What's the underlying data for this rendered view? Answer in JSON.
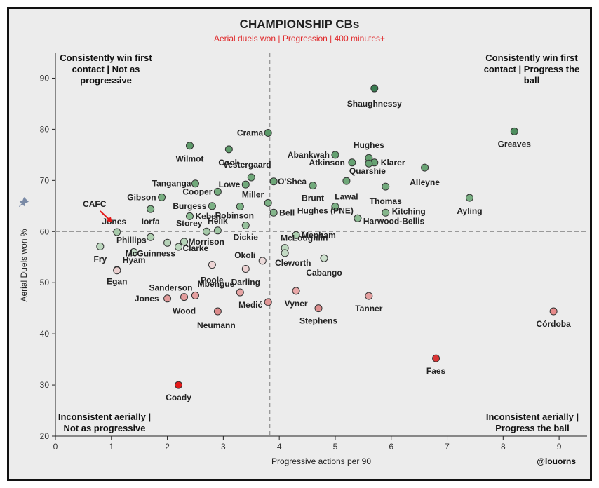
{
  "chart_data": {
    "type": "scatter",
    "title": "CHAMPIONSHIP CBs",
    "subtitle": "Aerial duels won | Progression | 400 minutes+",
    "xlabel": "Progressive actions per 90",
    "ylabel": "Aerial Duels won %",
    "xlim": [
      0,
      9.5
    ],
    "ylim": [
      20,
      95
    ],
    "xticks": [
      0,
      1,
      2,
      3,
      4,
      5,
      6,
      7,
      8,
      9
    ],
    "yticks": [
      20,
      30,
      40,
      50,
      60,
      70,
      80,
      90
    ],
    "x_ref": 3.83,
    "y_ref": 60,
    "credit": "@louorns",
    "highlight": "CAFC",
    "quadrants": {
      "top_left": [
        "Consistently win first",
        "contact | Not as",
        "progressive"
      ],
      "top_right": [
        "Consistently win first",
        "contact | Progress the",
        "ball"
      ],
      "bottom_left": [
        "Inconsistent aerially |",
        "Not as progressive"
      ],
      "bottom_right": [
        "Inconsistent aerially |",
        "Progress the ball"
      ]
    },
    "points": [
      {
        "name": "Shaughnessy",
        "x": 5.7,
        "y": 88,
        "color": "#3a7d52"
      },
      {
        "name": "Greaves",
        "x": 8.2,
        "y": 79.6,
        "color": "#4e8d5e"
      },
      {
        "name": "Crama",
        "x": 3.8,
        "y": 79.3,
        "color": "#5a9868"
      },
      {
        "name": "Wilmot",
        "x": 2.4,
        "y": 76.8,
        "color": "#5e9a6a"
      },
      {
        "name": "Cook",
        "x": 3.1,
        "y": 76.1,
        "color": "#5f9c6b"
      },
      {
        "name": "Abankwah",
        "x": 5.0,
        "y": 75,
        "color": "#64a070"
      },
      {
        "name": "Hughes",
        "x": 5.6,
        "y": 74.4,
        "color": "#64a070"
      },
      {
        "name": "Atkinson",
        "x": 5.3,
        "y": 73.5,
        "color": "#67a273"
      },
      {
        "name": "Klarer",
        "x": 5.7,
        "y": 73.5,
        "color": "#67a273"
      },
      {
        "name": "",
        "x": 5.6,
        "y": 73.3,
        "color": "#67a273"
      },
      {
        "name": "Alleyne",
        "x": 6.6,
        "y": 72.5,
        "color": "#69a374"
      },
      {
        "name": "Vestergaard",
        "x": 3.5,
        "y": 70.6,
        "color": "#6ea778"
      },
      {
        "name": "Quarshie",
        "x": 5.2,
        "y": 69.9,
        "color": "#6fa879"
      },
      {
        "name": "O'Shea",
        "x": 3.9,
        "y": 69.8,
        "color": "#6fa879"
      },
      {
        "name": "Tanganga",
        "x": 2.5,
        "y": 69.4,
        "color": "#71a97b"
      },
      {
        "name": "Lowe",
        "x": 3.4,
        "y": 69.2,
        "color": "#71a97b"
      },
      {
        "name": "Brunt",
        "x": 4.6,
        "y": 69,
        "color": "#72aa7c"
      },
      {
        "name": "Thomas",
        "x": 5.9,
        "y": 68.8,
        "color": "#72aa7c"
      },
      {
        "name": "Cooper",
        "x": 2.9,
        "y": 67.8,
        "color": "#75ac7e"
      },
      {
        "name": "Gibson",
        "x": 1.9,
        "y": 66.7,
        "color": "#78ae81"
      },
      {
        "name": "Ayling",
        "x": 7.4,
        "y": 66.6,
        "color": "#78ae81"
      },
      {
        "name": "Miller",
        "x": 3.8,
        "y": 65.6,
        "color": "#7bb084"
      },
      {
        "name": "Burgess",
        "x": 2.8,
        "y": 65,
        "color": "#7cb185"
      },
      {
        "name": "Lawal",
        "x": 5.0,
        "y": 64.9,
        "color": "#7cb185"
      },
      {
        "name": "Robinson",
        "x": 3.3,
        "y": 64.9,
        "color": "#7cb185"
      },
      {
        "name": "Iorfa",
        "x": 1.7,
        "y": 64.4,
        "color": "#80b388"
      },
      {
        "name": "Bell",
        "x": 3.9,
        "y": 63.7,
        "color": "#85b68c"
      },
      {
        "name": "Kitching",
        "x": 5.9,
        "y": 63.7,
        "color": "#85b68c"
      },
      {
        "name": "Keben",
        "x": 2.4,
        "y": 63,
        "color": "#8aba91"
      },
      {
        "name": "Hughes (PNE)",
        "x": 5.4,
        "y": 62.6,
        "color": "#8dbb93"
      },
      {
        "name": "Harwood-Bellis",
        "x": 5.4,
        "y": 62.6,
        "color": "#8dbb93"
      },
      {
        "name": "Dickie",
        "x": 3.4,
        "y": 61.2,
        "color": "#97c19c"
      },
      {
        "name": "Helik",
        "x": 2.9,
        "y": 60.2,
        "color": "#a0c6a4"
      },
      {
        "name": "Storey",
        "x": 2.7,
        "y": 60,
        "color": "#a5c9a8"
      },
      {
        "name": "Jones",
        "x": 1.1,
        "y": 59.9,
        "color": "#a8cbab"
      },
      {
        "name": "Mepham",
        "x": 4.3,
        "y": 59.3,
        "color": "#acceaf"
      },
      {
        "name": "Phillips",
        "x": 1.7,
        "y": 58.9,
        "color": "#b0d0b2"
      },
      {
        "name": "Morrison",
        "x": 2.3,
        "y": 58,
        "color": "#b6d3b8"
      },
      {
        "name": "McLoughlin",
        "x": 4.1,
        "y": 56.8,
        "color": "#bed8c0"
      },
      {
        "name": "Fry",
        "x": 0.8,
        "y": 57.1,
        "color": "#bcd7be"
      },
      {
        "name": "Clarke",
        "x": 2.2,
        "y": 57,
        "color": "#bcd7be"
      },
      {
        "name": "",
        "x": 2.0,
        "y": 57.8,
        "color": "#b6d3b8"
      },
      {
        "name": "McGuinness",
        "x": 1.4,
        "y": 56,
        "color": "#c2dac4"
      },
      {
        "name": "Cleworth",
        "x": 4.1,
        "y": 55.8,
        "color": "#c4dbc5"
      },
      {
        "name": "Cabango",
        "x": 4.8,
        "y": 54.8,
        "color": "#cbdfcc"
      },
      {
        "name": "Okoli",
        "x": 3.7,
        "y": 54.3,
        "color": "#ead9d9"
      },
      {
        "name": "Hyam",
        "x": 1.1,
        "y": 52.5,
        "color": "#ebd0d0"
      },
      {
        "name": "Poole",
        "x": 2.8,
        "y": 53.5,
        "color": "#eed5d5"
      },
      {
        "name": "Darling",
        "x": 3.4,
        "y": 52.7,
        "color": "#ecd2d2"
      },
      {
        "name": "Egan",
        "x": 1.1,
        "y": 52.4,
        "color": "#ebd0d0"
      },
      {
        "name": "Vyner",
        "x": 4.3,
        "y": 48.4,
        "color": "#e8a8a8"
      },
      {
        "name": "Mbengue",
        "x": 3.3,
        "y": 48.1,
        "color": "#e6a4a4"
      },
      {
        "name": "Sanderson",
        "x": 2.5,
        "y": 47.5,
        "color": "#e49f9f"
      },
      {
        "name": "Tanner",
        "x": 5.6,
        "y": 47.4,
        "color": "#e49f9f"
      },
      {
        "name": "Wood",
        "x": 2.3,
        "y": 47.2,
        "color": "#e39d9d"
      },
      {
        "name": "Jones",
        "x": 2.0,
        "y": 46.9,
        "color": "#e29b9b"
      },
      {
        "name": "Medić",
        "x": 3.8,
        "y": 46.2,
        "color": "#e09696"
      },
      {
        "name": "Stephens",
        "x": 4.7,
        "y": 45,
        "color": "#de8f8f"
      },
      {
        "name": "Neumann",
        "x": 2.9,
        "y": 44.4,
        "color": "#dc8b8b"
      },
      {
        "name": "Córdoba",
        "x": 8.9,
        "y": 44.4,
        "color": "#e88b8b"
      },
      {
        "name": "Faes",
        "x": 6.8,
        "y": 35.2,
        "color": "#d93535"
      },
      {
        "name": "Coady",
        "x": 2.2,
        "y": 30,
        "color": "#e31a1a"
      }
    ]
  }
}
